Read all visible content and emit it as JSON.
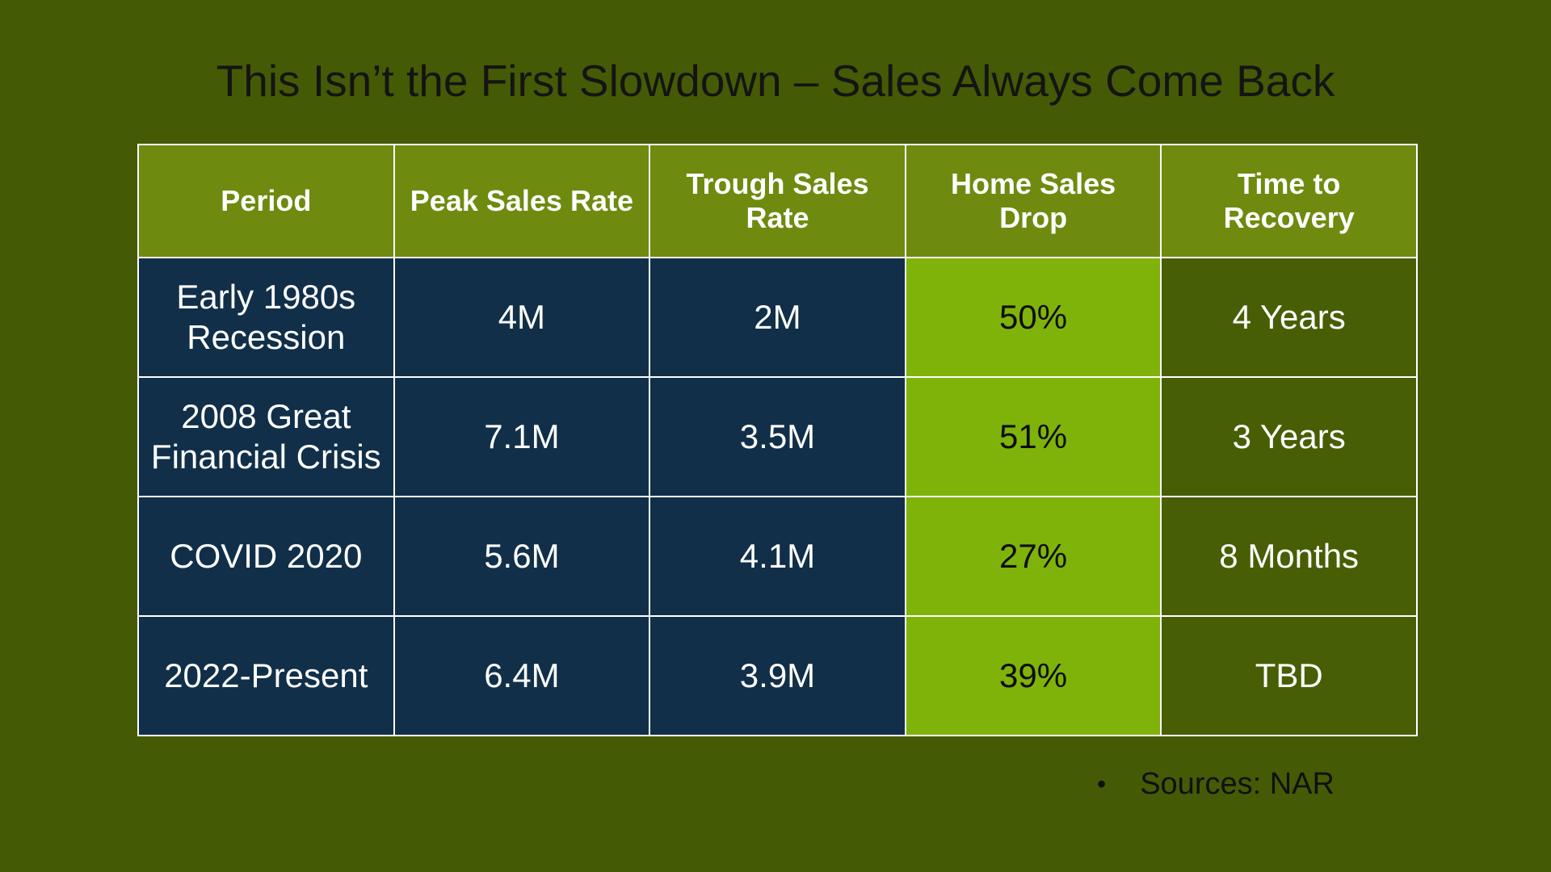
{
  "slide": {
    "title": "This Isn’t the First Slowdown – Sales Always Come Back",
    "table": {
      "headers": [
        {
          "key": "period",
          "label": "Period",
          "display": "Period"
        },
        {
          "key": "peak",
          "label": "Peak Sales Rate",
          "display": "Peak Sales Rate"
        },
        {
          "key": "trough",
          "label": "Trough Sales Rate",
          "display": "Trough Sales\nRate"
        },
        {
          "key": "drop",
          "label": "Home Sales Drop",
          "display": "Home Sales\nDrop"
        },
        {
          "key": "recovery",
          "label": "Time to Recovery",
          "display": "Time to\nRecovery"
        }
      ],
      "rows": [
        {
          "period": "Early 1980s\nRecession",
          "peak": "4M",
          "trough": "2M",
          "drop": "50%",
          "recovery": "4 Years"
        },
        {
          "period": "2008 Great\nFinancial Crisis",
          "peak": "7.1M",
          "trough": "3.5M",
          "drop": "51%",
          "recovery": "3 Years"
        },
        {
          "period": "COVID 2020",
          "peak": "5.6M",
          "trough": "4.1M",
          "drop": "27%",
          "recovery": "8 Months"
        },
        {
          "period": "2022-Present",
          "peak": "6.4M",
          "trough": "3.9M",
          "drop": "39%",
          "recovery": "TBD"
        }
      ]
    },
    "footer": {
      "bullet": "•",
      "source": "Sources: NAR"
    }
  },
  "colors": {
    "background": "#455A05",
    "header_bg": "#6E8B0F",
    "row_bg": "#112F48",
    "highlight_bg": "#7FB30A",
    "recovery_bg": "#475E04",
    "border": "#FFFFFF",
    "title_text": "#141414",
    "light_text": "#FFFFFF",
    "dark_text": "#0D0D0D"
  },
  "chart_data": {
    "type": "table",
    "title": "This Isn’t the First Slowdown – Sales Always Come Back",
    "columns": [
      "Period",
      "Peak Sales Rate",
      "Trough Sales Rate",
      "Home Sales Drop",
      "Time to Recovery"
    ],
    "rows": [
      [
        "Early 1980s Recession",
        "4M",
        "2M",
        "50%",
        "4 Years"
      ],
      [
        "2008 Great Financial Crisis",
        "7.1M",
        "3.5M",
        "51%",
        "3 Years"
      ],
      [
        "COVID 2020",
        "5.6M",
        "4.1M",
        "27%",
        "8 Months"
      ],
      [
        "2022-Present",
        "6.4M",
        "3.9M",
        "39%",
        "TBD"
      ]
    ],
    "source": "Sources: NAR",
    "layout_hints": "Home Sales Drop column highlighted bright green with bold black values; other data cells dark navy with white text; Time to Recovery cells dark olive; header row olive green with bold white text; white cell borders"
  }
}
